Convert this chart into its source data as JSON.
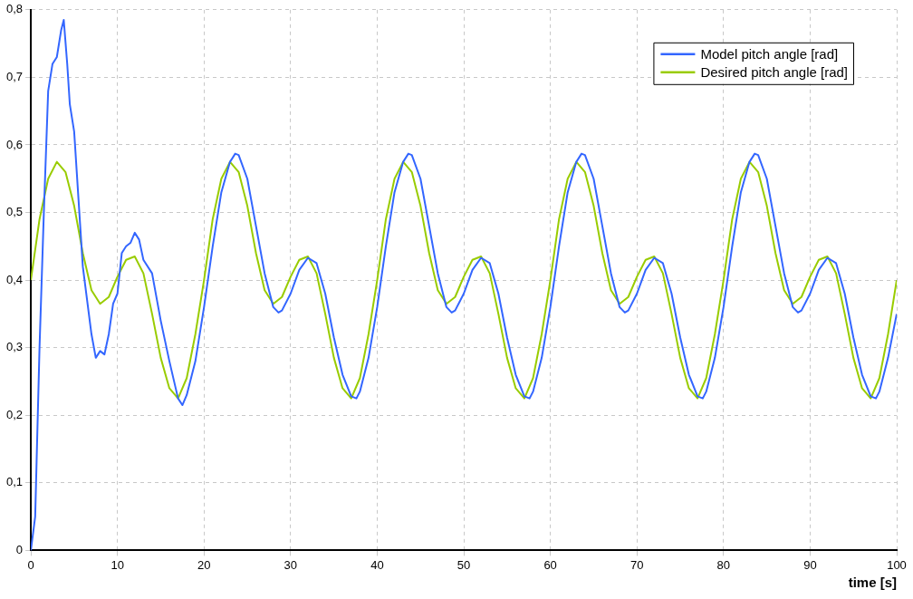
{
  "chart_data": {
    "type": "line",
    "xlabel": "time [s]",
    "xlim": [
      0,
      100
    ],
    "xticks": [
      0,
      10,
      20,
      30,
      40,
      50,
      60,
      70,
      80,
      90,
      100
    ],
    "ylim": [
      0,
      0.8
    ],
    "yticks": [
      0,
      {
        "value": 0.1,
        "label": "0,1"
      },
      {
        "value": 0.2,
        "label": "0,2"
      },
      {
        "value": 0.3,
        "label": "0,3"
      },
      {
        "value": 0.4,
        "label": "0,4"
      },
      {
        "value": 0.5,
        "label": "0,5"
      },
      {
        "value": 0.6,
        "label": "0,6"
      },
      {
        "value": 0.7,
        "label": "0,7"
      },
      {
        "value": 0.8,
        "label": "0,8"
      }
    ],
    "grid": true,
    "legend": "top right",
    "marker": "none",
    "line_style": "solid",
    "series": [
      {
        "name": "Model pitch angle [rad]",
        "color": "#3366ff",
        "x": [
          0,
          0.5,
          1,
          1.5,
          2,
          2.5,
          3,
          3.5,
          3.8,
          4.2,
          4.5,
          5,
          5.5,
          6,
          7,
          7.5,
          8,
          8.5,
          9,
          9.5,
          10,
          10.5,
          11,
          11.5,
          12,
          12.5,
          13,
          14,
          15,
          16,
          17,
          17.5,
          18,
          19,
          20,
          21,
          22,
          23,
          23.6,
          24,
          25,
          26,
          27,
          28,
          28.6,
          29,
          30,
          31,
          32,
          33,
          34,
          35,
          36,
          37,
          37.6,
          38,
          39,
          40,
          41,
          42,
          43,
          43.6,
          44,
          45,
          46,
          47,
          48,
          48.6,
          49,
          50,
          51,
          52,
          53,
          54,
          55,
          56,
          57,
          57.6,
          58,
          59,
          60,
          61,
          62,
          63,
          63.6,
          64,
          65,
          66,
          67,
          68,
          68.6,
          69,
          70,
          71,
          72,
          73,
          74,
          75,
          76,
          77,
          77.6,
          78,
          79,
          80,
          81,
          82,
          83,
          83.6,
          84,
          85,
          86,
          87,
          88,
          88.6,
          89,
          90,
          91,
          92,
          93,
          94,
          95,
          96,
          97,
          97.6,
          98,
          99,
          100
        ],
        "values": [
          0,
          0.05,
          0.3,
          0.5,
          0.68,
          0.72,
          0.73,
          0.77,
          0.785,
          0.72,
          0.66,
          0.62,
          0.52,
          0.42,
          0.32,
          0.285,
          0.295,
          0.29,
          0.32,
          0.365,
          0.38,
          0.44,
          0.45,
          0.455,
          0.47,
          0.46,
          0.43,
          0.41,
          0.34,
          0.28,
          0.225,
          0.215,
          0.23,
          0.28,
          0.36,
          0.45,
          0.53,
          0.575,
          0.587,
          0.585,
          0.55,
          0.48,
          0.41,
          0.36,
          0.352,
          0.355,
          0.38,
          0.415,
          0.433,
          0.425,
          0.38,
          0.315,
          0.26,
          0.228,
          0.225,
          0.235,
          0.285,
          0.36,
          0.45,
          0.53,
          0.575,
          0.587,
          0.585,
          0.55,
          0.48,
          0.41,
          0.36,
          0.352,
          0.355,
          0.38,
          0.415,
          0.433,
          0.425,
          0.38,
          0.315,
          0.26,
          0.228,
          0.225,
          0.235,
          0.285,
          0.36,
          0.45,
          0.53,
          0.575,
          0.587,
          0.585,
          0.55,
          0.48,
          0.41,
          0.36,
          0.352,
          0.355,
          0.38,
          0.415,
          0.433,
          0.425,
          0.38,
          0.315,
          0.26,
          0.228,
          0.225,
          0.235,
          0.285,
          0.36,
          0.45,
          0.53,
          0.575,
          0.587,
          0.585,
          0.55,
          0.48,
          0.41,
          0.36,
          0.352,
          0.355,
          0.38,
          0.415,
          0.433,
          0.425,
          0.38,
          0.315,
          0.26,
          0.228,
          0.225,
          0.235,
          0.285,
          0.35
        ]
      },
      {
        "name": "Desired pitch angle [rad]",
        "color": "#99cc00",
        "x": [
          0,
          1,
          2,
          3,
          4,
          5,
          6,
          7,
          8,
          9,
          10,
          11,
          12,
          13,
          14,
          15,
          16,
          17,
          18,
          19,
          20,
          21,
          22,
          23,
          24,
          25,
          26,
          27,
          28,
          29,
          30,
          31,
          32,
          33,
          34,
          35,
          36,
          37,
          38,
          39,
          40,
          41,
          42,
          43,
          44,
          45,
          46,
          47,
          48,
          49,
          50,
          51,
          52,
          53,
          54,
          55,
          56,
          57,
          58,
          59,
          60,
          61,
          62,
          63,
          64,
          65,
          66,
          67,
          68,
          69,
          70,
          71,
          72,
          73,
          74,
          75,
          76,
          77,
          78,
          79,
          80,
          81,
          82,
          83,
          84,
          85,
          86,
          87,
          88,
          89,
          90,
          91,
          92,
          93,
          94,
          95,
          96,
          97,
          98,
          99,
          100
        ],
        "values": [
          0.4,
          0.49,
          0.55,
          0.575,
          0.56,
          0.51,
          0.44,
          0.385,
          0.365,
          0.375,
          0.405,
          0.43,
          0.435,
          0.41,
          0.35,
          0.285,
          0.24,
          0.225,
          0.255,
          0.32,
          0.4,
          0.49,
          0.55,
          0.575,
          0.56,
          0.51,
          0.44,
          0.385,
          0.365,
          0.375,
          0.405,
          0.43,
          0.435,
          0.41,
          0.35,
          0.285,
          0.24,
          0.225,
          0.255,
          0.32,
          0.4,
          0.49,
          0.55,
          0.575,
          0.56,
          0.51,
          0.44,
          0.385,
          0.365,
          0.375,
          0.405,
          0.43,
          0.435,
          0.41,
          0.35,
          0.285,
          0.24,
          0.225,
          0.255,
          0.32,
          0.4,
          0.49,
          0.55,
          0.575,
          0.56,
          0.51,
          0.44,
          0.385,
          0.365,
          0.375,
          0.405,
          0.43,
          0.435,
          0.41,
          0.35,
          0.285,
          0.24,
          0.225,
          0.255,
          0.32,
          0.4,
          0.49,
          0.55,
          0.575,
          0.56,
          0.51,
          0.44,
          0.385,
          0.365,
          0.375,
          0.405,
          0.43,
          0.435,
          0.41,
          0.35,
          0.285,
          0.24,
          0.225,
          0.255,
          0.32,
          0.4
        ]
      }
    ]
  }
}
